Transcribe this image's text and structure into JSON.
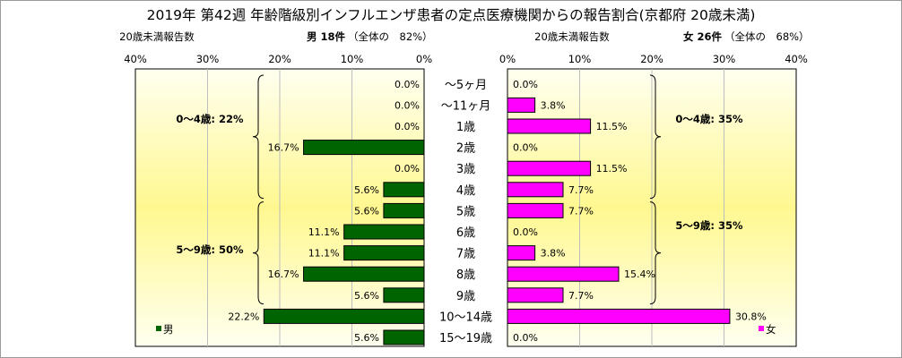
{
  "chart_data": {
    "type": "bar",
    "title": "2019年 第42週 年齢階級別インフルエンザ患者の定点医療機関からの報告割合(京都府 20歳未満)",
    "categories": [
      "〜5ヶ月",
      "〜11ヶ月",
      "1歳",
      "2歳",
      "3歳",
      "4歳",
      "5歳",
      "6歳",
      "7歳",
      "8歳",
      "9歳",
      "10〜14歳",
      "15〜19歳"
    ],
    "xlim": [
      0,
      40
    ],
    "xticks": [
      "40%",
      "30%",
      "20%",
      "10%",
      "0%",
      "0%",
      "10%",
      "20%",
      "30%",
      "40%"
    ],
    "grid": true,
    "series": [
      {
        "name": "男",
        "color": "#006400",
        "values": [
          0.0,
          0.0,
          0.0,
          16.7,
          0.0,
          5.6,
          5.6,
          11.1,
          11.1,
          16.7,
          5.6,
          22.2,
          5.6
        ],
        "labels": [
          "0.0%",
          "0.0%",
          "0.0%",
          "16.7%",
          "0.0%",
          "5.6%",
          "5.6%",
          "11.1%",
          "11.1%",
          "16.7%",
          "5.6%",
          "22.2%",
          "5.6%"
        ]
      },
      {
        "name": "女",
        "color": "#ff00ff",
        "values": [
          0.0,
          3.8,
          11.5,
          0.0,
          11.5,
          7.7,
          7.7,
          0.0,
          3.8,
          15.4,
          7.7,
          30.8,
          0.0
        ],
        "labels": [
          "0.0%",
          "3.8%",
          "11.5%",
          "0.0%",
          "11.5%",
          "7.7%",
          "7.7%",
          "0.0%",
          "3.8%",
          "15.4%",
          "7.7%",
          "30.8%",
          "0.0%"
        ]
      }
    ],
    "left_panel": {
      "caption": "20歳未満報告数",
      "count_label": "男 18件",
      "share_label": "（全体の　82%）",
      "group_labels": [
        "0〜4歳: 22%",
        "5〜9歳: 50%"
      ]
    },
    "right_panel": {
      "caption": "20歳未満報告数",
      "count_label": "女 26件",
      "share_label": "（全体の　68%）",
      "group_labels": [
        "0〜4歳: 35%",
        "5〜9歳: 35%"
      ]
    },
    "legend": {
      "placement": "bottom-inside",
      "male": "男",
      "female": "女"
    },
    "colors": {
      "panel_edge": "#fffff0",
      "panel_center": "#fff890",
      "grid": "#bdbdbd"
    }
  }
}
